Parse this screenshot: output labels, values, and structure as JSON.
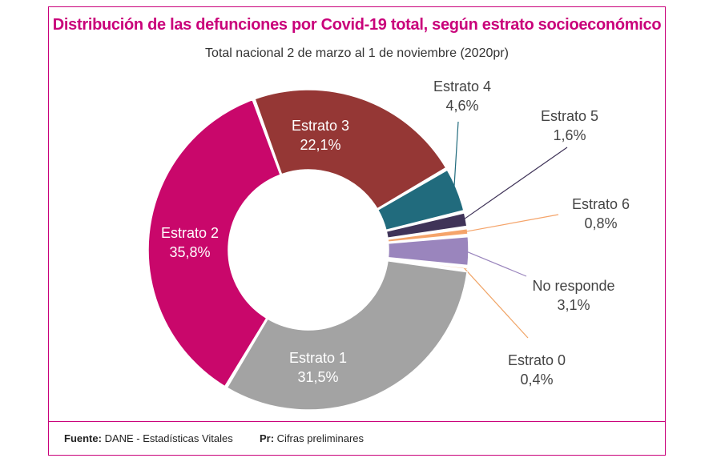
{
  "header": {
    "title": "Distribución de las defunciones por Covid-19 total, según estrato socioeconómico",
    "subtitle": "Total nacional 2 de marzo al 1 de noviembre (2020pr)"
  },
  "footer": {
    "source_label": "Fuente:",
    "source_value": "DANE - Estadísticas Vitales",
    "note_label": "Pr:",
    "note_value": "Cifras preliminares"
  },
  "colors": {
    "accent": "#c9007a"
  },
  "chart_data": {
    "type": "pie",
    "donut": true,
    "title": "Distribución de las defunciones por Covid-19 total, según estrato socioeconómico",
    "subtitle": "Total nacional 2 de marzo al 1 de noviembre (2020pr)",
    "unit": "%",
    "slices": [
      {
        "name": "Estrato 3",
        "value": 22.1,
        "label": "22,1%",
        "color": "#953735",
        "label_style": "inside"
      },
      {
        "name": "Estrato 4",
        "value": 4.6,
        "label": "4,6%",
        "color": "#216b7d",
        "label_style": "outside"
      },
      {
        "name": "Estrato 5",
        "value": 1.6,
        "label": "1,6%",
        "color": "#3f3358",
        "label_style": "outside"
      },
      {
        "name": "Estrato 6",
        "value": 0.8,
        "label": "0,8%",
        "color": "#f5a46a",
        "label_style": "outside"
      },
      {
        "name": "No responde",
        "value": 3.1,
        "label": "3,1%",
        "color": "#9a85bd",
        "label_style": "outside"
      },
      {
        "name": "Estrato 0",
        "value": 0.4,
        "label": "0,4%",
        "color": "#f0a466",
        "label_style": "outside"
      },
      {
        "name": "Estrato 1",
        "value": 31.5,
        "label": "31,5%",
        "color": "#a3a3a3",
        "label_style": "inside"
      },
      {
        "name": "Estrato 2",
        "value": 35.8,
        "label": "35,8%",
        "color": "#c9076b",
        "label_style": "inside"
      }
    ]
  }
}
